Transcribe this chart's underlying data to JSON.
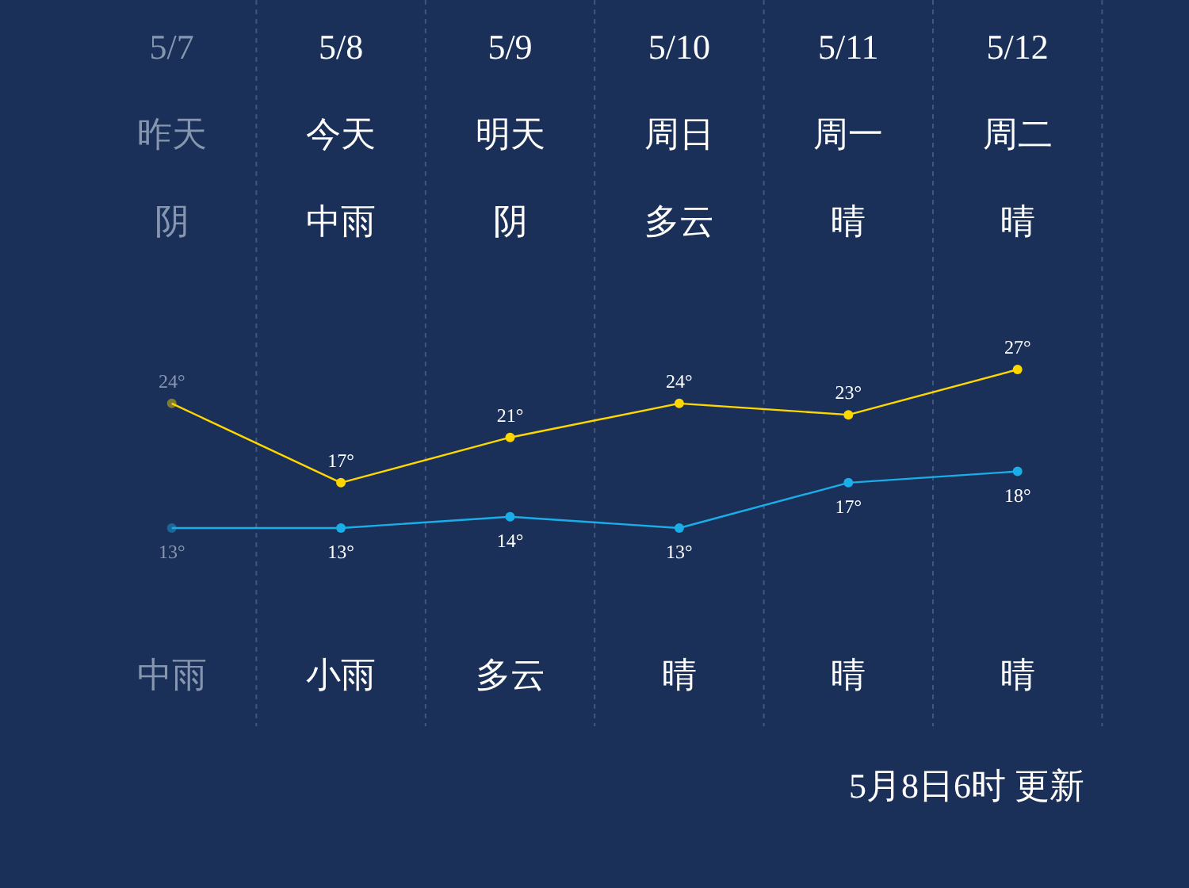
{
  "chart_data": {
    "type": "line",
    "categories": [
      "5/7",
      "5/8",
      "5/9",
      "5/10",
      "5/11",
      "5/12"
    ],
    "series": [
      {
        "color": "#ffd700",
        "values": [
          24,
          17,
          21,
          24,
          23,
          27
        ],
        "value_labels": [
          "24°",
          "17°",
          "21°",
          "24°",
          "23°",
          "27°"
        ]
      },
      {
        "color": "#1aaee8",
        "values": [
          13,
          13,
          14,
          13,
          17,
          18
        ],
        "value_labels": [
          "13°",
          "13°",
          "14°",
          "13°",
          "17°",
          "18°"
        ]
      }
    ],
    "marker": "circle",
    "annotations": [
      "昨天",
      "今天",
      "明天",
      "周日",
      "周一",
      "周二",
      "阴",
      "中雨",
      "阴",
      "多云",
      "晴",
      "晴",
      "中雨",
      "小雨",
      "多云",
      "晴",
      "晴",
      "晴",
      "5月8日6时 更新"
    ]
  }
}
